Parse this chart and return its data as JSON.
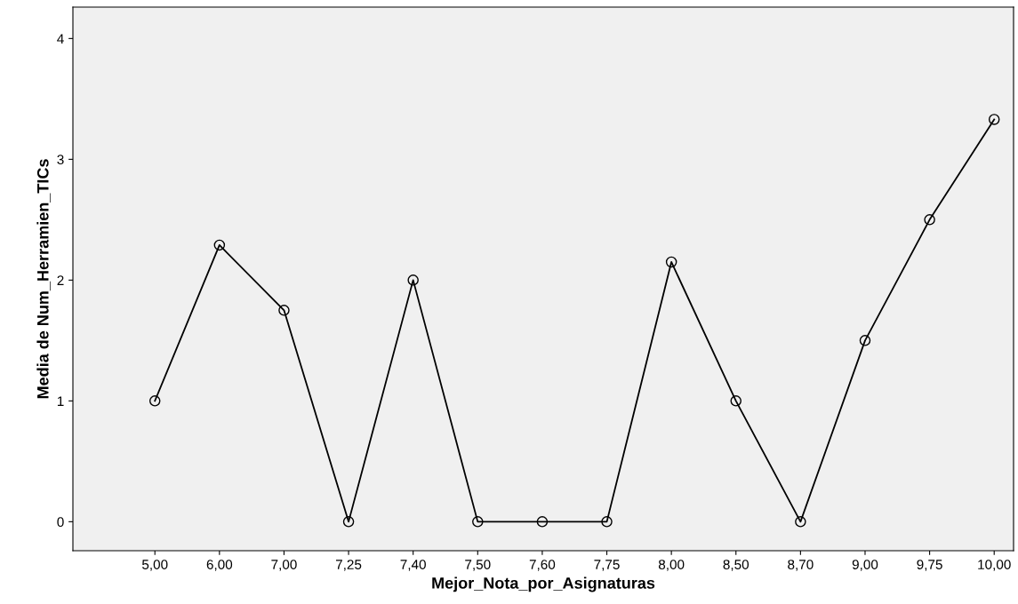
{
  "chart_data": {
    "type": "line",
    "xlabel": "Mejor_Nota_por_Asignaturas",
    "ylabel": "Media de Num_Herramien_TICs",
    "categories": [
      "5,00",
      "6,00",
      "7,00",
      "7,25",
      "7,40",
      "7,50",
      "7,60",
      "7,75",
      "8,00",
      "8,50",
      "8,70",
      "9,00",
      "9,75",
      "10,00"
    ],
    "series": [
      {
        "color": "#000000",
        "values": [
          1,
          2.29,
          1.75,
          0,
          2,
          0,
          0,
          0,
          2.15,
          1,
          0,
          1.5,
          2.5,
          3.33
        ]
      }
    ],
    "ylim": [
      -0.24,
      4.26
    ],
    "yticks": [
      0,
      1,
      2,
      3,
      4
    ],
    "marker": "circle",
    "line_style": "solid"
  }
}
